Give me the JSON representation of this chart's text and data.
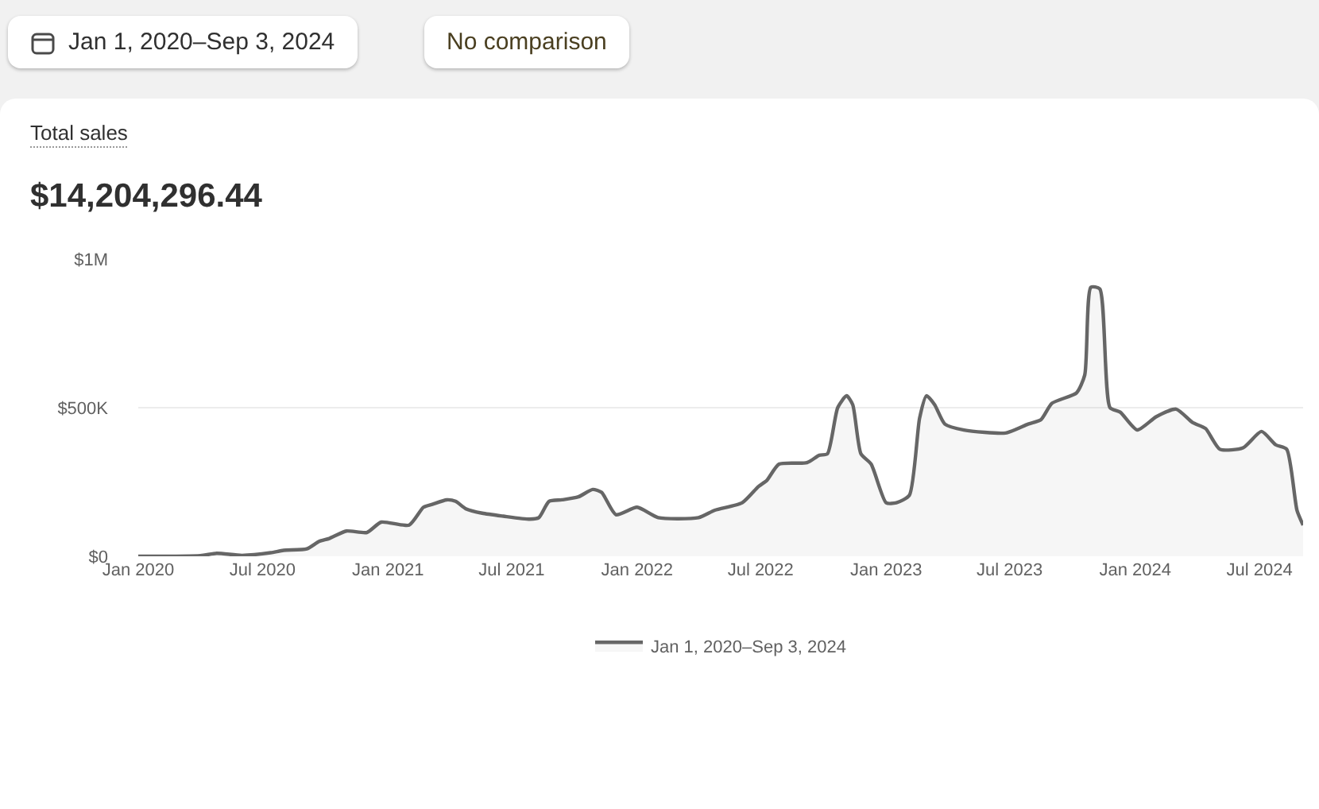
{
  "chart_data": {
    "type": "area",
    "title": "Total sales",
    "subtitle": "$14,204,296.44",
    "annotations": [
      "Jan 1, 2020–Sep 3, 2024",
      "No comparison"
    ],
    "x": [
      "2020-01-01",
      "2020-04-01",
      "2020-04-25",
      "2020-06-01",
      "2020-07-13",
      "2020-08-01",
      "2020-09-04",
      "2020-09-22",
      "2020-10-07",
      "2020-11-01",
      "2020-12-01",
      "2020-12-22",
      "2021-02-01",
      "2021-02-22",
      "2021-03-07",
      "2021-03-28",
      "2021-04-10",
      "2021-04-25",
      "2021-05-19",
      "2021-06-19",
      "2021-07-28",
      "2021-08-10",
      "2021-08-25",
      "2021-09-13",
      "2021-10-07",
      "2021-10-28",
      "2021-11-10",
      "2021-12-01",
      "2022-01-01",
      "2022-02-01",
      "2022-04-01",
      "2022-04-25",
      "2022-06-04",
      "2022-06-28",
      "2022-07-10",
      "2022-07-28",
      "2022-09-07",
      "2022-09-25",
      "2022-10-07",
      "2022-10-22",
      "2022-11-04",
      "2022-11-13",
      "2022-11-25",
      "2022-12-10",
      "2023-01-01",
      "2023-01-16",
      "2023-02-04",
      "2023-02-19",
      "2023-03-01",
      "2023-03-13",
      "2023-03-28",
      "2023-04-25",
      "2023-06-25",
      "2023-07-28",
      "2023-08-16",
      "2023-09-01",
      "2023-10-07",
      "2023-10-19",
      "2023-10-28",
      "2023-11-10",
      "2023-11-25",
      "2023-12-10",
      "2024-01-04",
      "2024-02-01",
      "2024-03-01",
      "2024-03-25",
      "2024-04-13",
      "2024-05-04",
      "2024-06-07",
      "2024-07-04",
      "2024-07-25",
      "2024-08-10",
      "2024-08-25",
      "2024-09-03"
    ],
    "series": [
      {
        "name": "Jan 1, 2020–Sep 3, 2024",
        "color": "#666666",
        "values": [
          0,
          2000,
          10000,
          3000,
          12000,
          20000,
          25000,
          50000,
          60000,
          85000,
          80000,
          115000,
          105000,
          165000,
          175000,
          190000,
          185000,
          160000,
          145000,
          135000,
          125000,
          130000,
          185000,
          190000,
          200000,
          225000,
          215000,
          140000,
          165000,
          130000,
          130000,
          155000,
          180000,
          235000,
          255000,
          310000,
          315000,
          340000,
          345000,
          500000,
          540000,
          510000,
          345000,
          310000,
          180000,
          180000,
          205000,
          465000,
          540000,
          510000,
          445000,
          425000,
          415000,
          445000,
          460000,
          515000,
          550000,
          610000,
          905000,
          900000,
          500000,
          485000,
          425000,
          470000,
          495000,
          450000,
          430000,
          360000,
          365000,
          420000,
          375000,
          360000,
          155000,
          105000
        ]
      }
    ],
    "xlim": [
      "2020-01-01",
      "2024-09-03"
    ],
    "xticks": [
      {
        "value": "2020-01-01",
        "label": "Jan 2020"
      },
      {
        "value": "2020-07-01",
        "label": "Jul 2020"
      },
      {
        "value": "2021-01-01",
        "label": "Jan 2021"
      },
      {
        "value": "2021-07-01",
        "label": "Jul 2021"
      },
      {
        "value": "2022-01-01",
        "label": "Jan 2022"
      },
      {
        "value": "2022-07-01",
        "label": "Jul 2022"
      },
      {
        "value": "2023-01-01",
        "label": "Jan 2023"
      },
      {
        "value": "2023-07-01",
        "label": "Jul 2023"
      },
      {
        "value": "2024-01-01",
        "label": "Jan 2024"
      },
      {
        "value": "2024-07-01",
        "label": "Jul 2024"
      }
    ],
    "ylim": [
      0,
      1000000
    ],
    "yticks": [
      {
        "value": 0,
        "label": "$0"
      },
      {
        "value": 500000,
        "label": "$500K"
      },
      {
        "value": 1000000,
        "label": "$1M"
      }
    ],
    "grid": "y",
    "legend": "bottom"
  }
}
